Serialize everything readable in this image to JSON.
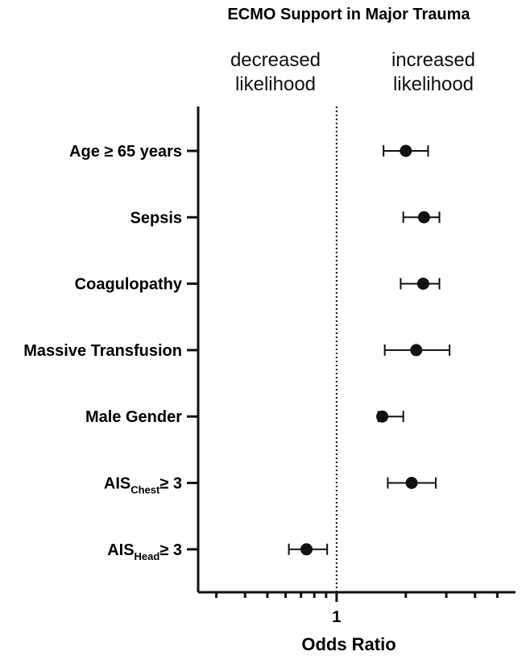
{
  "chart_data": {
    "type": "scatter",
    "subtype": "forest-plot",
    "title": "ECMO Support in Major Trauma",
    "xlabel": "Odds Ratio",
    "x_scale": "log",
    "xlim": [
      0.25,
      6.0
    ],
    "x_tick_labels": [
      {
        "value": 1,
        "label": "1"
      }
    ],
    "x_minor_ticks": [
      0.3,
      0.4,
      0.5,
      0.6,
      0.7,
      0.8,
      0.9,
      2,
      3,
      4,
      5
    ],
    "reference_line": {
      "x": 1,
      "style": "dotted"
    },
    "region_labels": {
      "left": [
        "decreased",
        "likelihood"
      ],
      "right": [
        "increased",
        "likelihood"
      ]
    },
    "categories": [
      {
        "main": "Age ≥ 65 years",
        "sub": "",
        "after": ""
      },
      {
        "main": "Sepsis",
        "sub": "",
        "after": ""
      },
      {
        "main": "Coagulopathy",
        "sub": "",
        "after": ""
      },
      {
        "main": "Massive Transfusion",
        "sub": "",
        "after": ""
      },
      {
        "main": "Male Gender",
        "sub": "",
        "after": ""
      },
      {
        "main": "AIS",
        "sub": "Chest",
        "after": "≥ 3"
      },
      {
        "main": "AIS",
        "sub": "Head",
        "after": "≥ 3"
      }
    ],
    "series": [
      {
        "points": [
          {
            "or": 2.0,
            "lo": 1.6,
            "hi": 2.5
          },
          {
            "or": 2.4,
            "lo": 1.95,
            "hi": 2.8
          },
          {
            "or": 2.38,
            "lo": 1.9,
            "hi": 2.8
          },
          {
            "or": 2.22,
            "lo": 1.62,
            "hi": 3.1
          },
          {
            "or": 1.58,
            "lo": 1.52,
            "hi": 1.95
          },
          {
            "or": 2.12,
            "lo": 1.67,
            "hi": 2.7
          },
          {
            "or": 0.74,
            "lo": 0.62,
            "hi": 0.91
          }
        ]
      }
    ],
    "grid": false,
    "marker_color": "#111111"
  }
}
